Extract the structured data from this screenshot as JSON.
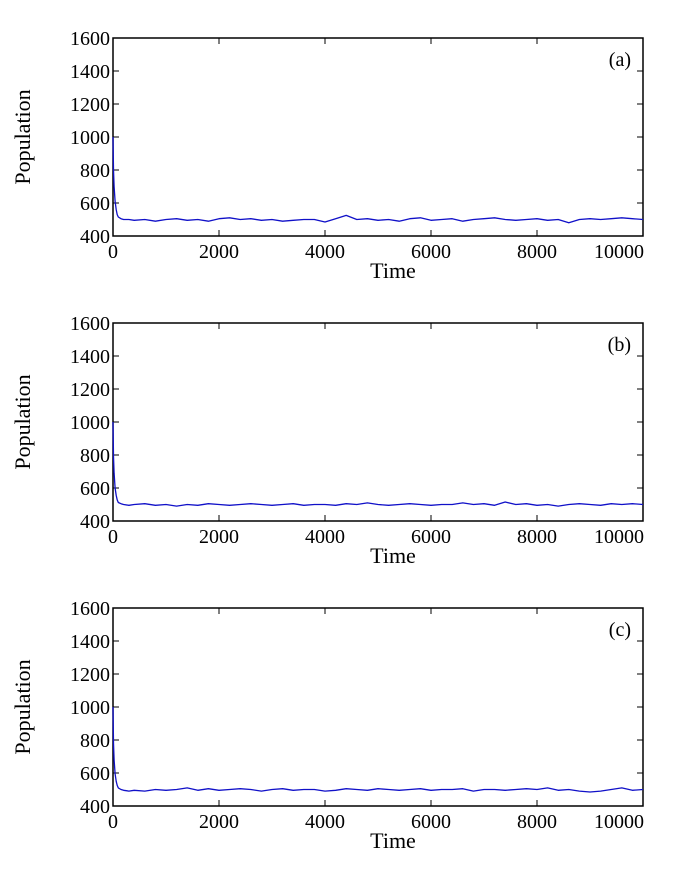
{
  "chart_data": [
    {
      "type": "line",
      "panel_label": "(a)",
      "xlabel": "Time",
      "ylabel": "Population",
      "xlim": [
        0,
        10000
      ],
      "ylim": [
        400,
        1600
      ],
      "xticks": [
        0,
        2000,
        4000,
        6000,
        8000,
        10000
      ],
      "yticks": [
        400,
        600,
        800,
        1000,
        1200,
        1400,
        1600
      ],
      "grid": false,
      "series": [
        {
          "color": "#1010c8",
          "x": [
            0,
            10,
            20,
            40,
            60,
            80,
            100,
            150,
            200,
            300,
            400,
            600,
            800,
            1000,
            1200,
            1400,
            1600,
            1800,
            2000,
            2200,
            2400,
            2600,
            2800,
            3000,
            3200,
            3400,
            3600,
            3800,
            4000,
            4200,
            4400,
            4600,
            4800,
            5000,
            5200,
            5400,
            5600,
            5800,
            6000,
            6200,
            6400,
            6600,
            6800,
            7000,
            7200,
            7400,
            7600,
            7800,
            8000,
            8200,
            8400,
            8600,
            8800,
            9000,
            9200,
            9400,
            9600,
            9800,
            10000
          ],
          "y": [
            1000,
            800,
            700,
            610,
            560,
            530,
            515,
            505,
            500,
            500,
            495,
            500,
            490,
            500,
            505,
            495,
            500,
            490,
            505,
            510,
            500,
            505,
            495,
            500,
            490,
            495,
            500,
            500,
            485,
            505,
            525,
            500,
            505,
            495,
            500,
            490,
            505,
            510,
            495,
            500,
            505,
            490,
            500,
            505,
            510,
            500,
            495,
            500,
            505,
            495,
            500,
            480,
            500,
            505,
            500,
            505,
            510,
            505,
            500
          ]
        }
      ]
    },
    {
      "type": "line",
      "panel_label": "(b)",
      "xlabel": "Time",
      "ylabel": "Population",
      "xlim": [
        0,
        10000
      ],
      "ylim": [
        400,
        1600
      ],
      "xticks": [
        0,
        2000,
        4000,
        6000,
        8000,
        10000
      ],
      "yticks": [
        400,
        600,
        800,
        1000,
        1200,
        1400,
        1600
      ],
      "grid": false,
      "series": [
        {
          "color": "#1010c8",
          "x": [
            0,
            10,
            20,
            40,
            60,
            80,
            100,
            150,
            200,
            300,
            400,
            600,
            800,
            1000,
            1200,
            1400,
            1600,
            1800,
            2000,
            2200,
            2400,
            2600,
            2800,
            3000,
            3200,
            3400,
            3600,
            3800,
            4000,
            4200,
            4400,
            4600,
            4800,
            5000,
            5200,
            5400,
            5600,
            5800,
            6000,
            6200,
            6400,
            6600,
            6800,
            7000,
            7200,
            7400,
            7600,
            7800,
            8000,
            8200,
            8400,
            8600,
            8800,
            9000,
            9200,
            9400,
            9600,
            9800,
            10000
          ],
          "y": [
            1000,
            790,
            690,
            600,
            555,
            528,
            512,
            505,
            500,
            495,
            500,
            505,
            495,
            500,
            490,
            500,
            495,
            505,
            500,
            495,
            500,
            505,
            500,
            495,
            500,
            505,
            495,
            500,
            500,
            495,
            505,
            500,
            510,
            500,
            495,
            500,
            505,
            500,
            495,
            500,
            500,
            510,
            500,
            505,
            495,
            515,
            500,
            505,
            495,
            500,
            490,
            500,
            505,
            500,
            495,
            505,
            500,
            505,
            500
          ]
        }
      ]
    },
    {
      "type": "line",
      "panel_label": "(c)",
      "xlabel": "Time",
      "ylabel": "Population",
      "xlim": [
        0,
        10000
      ],
      "ylim": [
        400,
        1600
      ],
      "xticks": [
        0,
        2000,
        4000,
        6000,
        8000,
        10000
      ],
      "yticks": [
        400,
        600,
        800,
        1000,
        1200,
        1400,
        1600
      ],
      "grid": false,
      "series": [
        {
          "color": "#1010c8",
          "x": [
            0,
            10,
            20,
            40,
            60,
            80,
            100,
            150,
            200,
            300,
            400,
            600,
            800,
            1000,
            1200,
            1400,
            1600,
            1800,
            2000,
            2200,
            2400,
            2600,
            2800,
            3000,
            3200,
            3400,
            3600,
            3800,
            4000,
            4200,
            4400,
            4600,
            4800,
            5000,
            5200,
            5400,
            5600,
            5800,
            6000,
            6200,
            6400,
            6600,
            6800,
            7000,
            7200,
            7400,
            7600,
            7800,
            8000,
            8200,
            8400,
            8600,
            8800,
            9000,
            9200,
            9400,
            9600,
            9800,
            10000
          ],
          "y": [
            1000,
            780,
            680,
            595,
            550,
            525,
            510,
            500,
            495,
            490,
            495,
            490,
            500,
            495,
            500,
            510,
            495,
            505,
            495,
            500,
            505,
            500,
            490,
            500,
            505,
            495,
            500,
            500,
            490,
            495,
            505,
            500,
            495,
            505,
            500,
            495,
            500,
            505,
            495,
            500,
            500,
            505,
            490,
            500,
            500,
            495,
            500,
            505,
            500,
            510,
            495,
            500,
            490,
            485,
            490,
            500,
            510,
            495,
            500
          ]
        }
      ]
    }
  ]
}
